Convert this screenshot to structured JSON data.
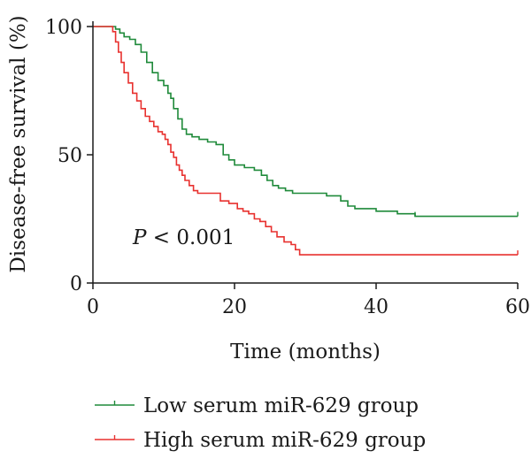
{
  "chart_data": {
    "type": "line",
    "subtype": "kaplan-meier",
    "title": "",
    "xlabel": "Time (months)",
    "ylabel": "Disease-free survival (%)",
    "xlim": [
      0,
      60
    ],
    "ylim": [
      0,
      100
    ],
    "x_ticks": [
      0,
      20,
      40,
      60
    ],
    "y_ticks": [
      0,
      50,
      100
    ],
    "grid": false,
    "legend_position": "bottom",
    "annotation": {
      "italic": "P",
      "rest": " < 0.001"
    },
    "series": [
      {
        "name": "Low serum miR-629 group",
        "color": "#1f8a3a",
        "step_points": [
          [
            0,
            100
          ],
          [
            2.6,
            100
          ],
          [
            3.2,
            99
          ],
          [
            3.8,
            97.5
          ],
          [
            4.4,
            96
          ],
          [
            5.2,
            95
          ],
          [
            6.0,
            93
          ],
          [
            6.8,
            90
          ],
          [
            7.6,
            86
          ],
          [
            8.4,
            82
          ],
          [
            9.2,
            79
          ],
          [
            10.0,
            77
          ],
          [
            10.6,
            74
          ],
          [
            11.0,
            72
          ],
          [
            11.4,
            68
          ],
          [
            12.0,
            64
          ],
          [
            12.6,
            60
          ],
          [
            13.2,
            58
          ],
          [
            14.0,
            57
          ],
          [
            15.0,
            56
          ],
          [
            16.2,
            55
          ],
          [
            17.4,
            54
          ],
          [
            18.4,
            50
          ],
          [
            19.2,
            48
          ],
          [
            20.0,
            46
          ],
          [
            21.4,
            45
          ],
          [
            22.8,
            44
          ],
          [
            23.8,
            42
          ],
          [
            24.6,
            40
          ],
          [
            25.4,
            38
          ],
          [
            26.2,
            37
          ],
          [
            27.2,
            36
          ],
          [
            28.2,
            35
          ],
          [
            30.0,
            35
          ],
          [
            33.0,
            34
          ],
          [
            35.0,
            32
          ],
          [
            36.0,
            30
          ],
          [
            37.0,
            29
          ],
          [
            40.0,
            28
          ],
          [
            43.0,
            27
          ],
          [
            45.5,
            26
          ],
          [
            60,
            26
          ]
        ],
        "censor_x": [
          45.5,
          60
        ]
      },
      {
        "name": "High serum miR-629 group",
        "color": "#e8312f",
        "step_points": [
          [
            0,
            100
          ],
          [
            2.4,
            100
          ],
          [
            2.8,
            98
          ],
          [
            3.2,
            94
          ],
          [
            3.6,
            90
          ],
          [
            4.0,
            86
          ],
          [
            4.4,
            82
          ],
          [
            5.0,
            78
          ],
          [
            5.6,
            74
          ],
          [
            6.2,
            71
          ],
          [
            6.8,
            68
          ],
          [
            7.4,
            65
          ],
          [
            8.0,
            63
          ],
          [
            8.6,
            61
          ],
          [
            9.2,
            59
          ],
          [
            9.8,
            58
          ],
          [
            10.2,
            56
          ],
          [
            10.6,
            54
          ],
          [
            11.0,
            51
          ],
          [
            11.4,
            49
          ],
          [
            11.8,
            46
          ],
          [
            12.2,
            44
          ],
          [
            12.6,
            42
          ],
          [
            13.0,
            40
          ],
          [
            13.6,
            38
          ],
          [
            14.2,
            36
          ],
          [
            14.8,
            35
          ],
          [
            18.0,
            32
          ],
          [
            19.2,
            31
          ],
          [
            20.4,
            29
          ],
          [
            21.2,
            28
          ],
          [
            22.0,
            27
          ],
          [
            22.8,
            25
          ],
          [
            23.6,
            24
          ],
          [
            24.4,
            22
          ],
          [
            25.2,
            20
          ],
          [
            26.0,
            18
          ],
          [
            27.0,
            16
          ],
          [
            28.0,
            15
          ],
          [
            28.6,
            13
          ],
          [
            29.2,
            11
          ],
          [
            60,
            11
          ]
        ],
        "censor_x": [
          60
        ]
      }
    ]
  }
}
